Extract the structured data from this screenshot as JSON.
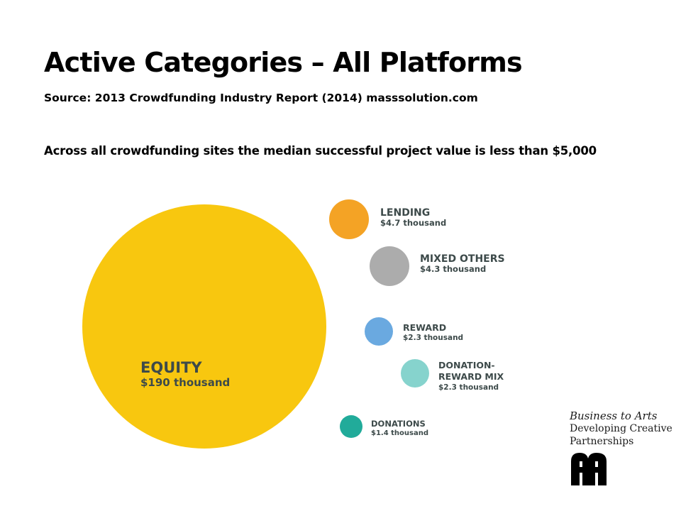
{
  "title": "Active Categories – All Platforms",
  "source": "Source: 2013 Crowdfunding Industry Report (2014) masssolution.com",
  "subtitle": "Across all crowdfunding sites the median successful project value is less than $5,000",
  "chart_data": {
    "type": "bubble",
    "title": "",
    "unit": "thousand USD",
    "series": [
      {
        "name": "EQUITY",
        "value": 190,
        "label": "$190 thousand",
        "color": "#f8c70f"
      },
      {
        "name": "LENDING",
        "value": 4.7,
        "label": "$4.7 thousand",
        "color": "#f4a325"
      },
      {
        "name": "MIXED OTHERS",
        "value": 4.3,
        "label": "$4.3 thousand",
        "color": "#acacac"
      },
      {
        "name": "REWARD",
        "value": 2.3,
        "label": "$2.3 thousand",
        "color": "#6aa9e0"
      },
      {
        "name": "DONATION-REWARD MIX",
        "value": 2.3,
        "label": "$2.3 thousand",
        "color": "#86d3cd"
      },
      {
        "name": "DONATIONS",
        "value": 1.4,
        "label": "$1.4 thousand",
        "color": "#21ab9a"
      }
    ]
  },
  "brand": {
    "line1": "Business to Arts",
    "line2": "Developing Creative",
    "line3": "Partnerships"
  }
}
